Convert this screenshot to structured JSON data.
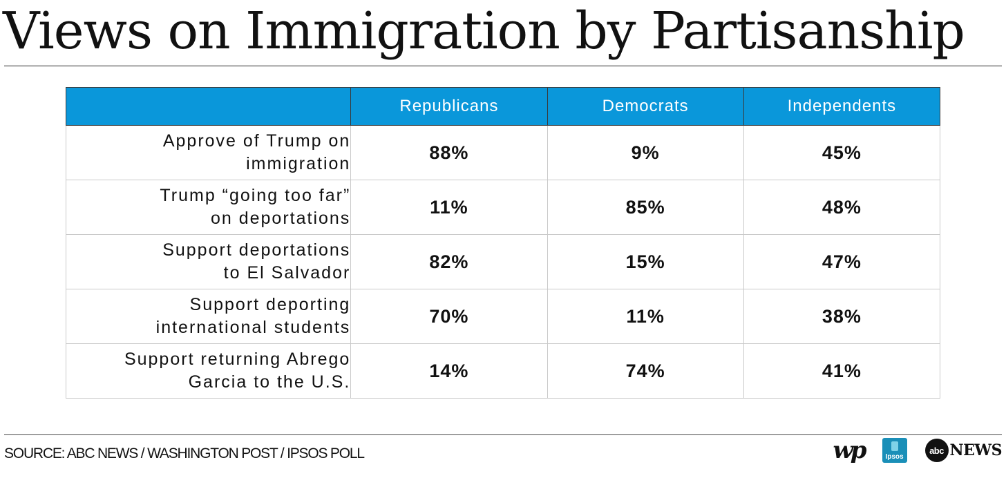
{
  "title": "Views on Immigration by Partisanship",
  "chart_data": {
    "type": "table",
    "columns": [
      "",
      "Republicans",
      "Democrats",
      "Independents"
    ],
    "rows": [
      {
        "label_lines": [
          "Approve of Trump on",
          "immigration"
        ],
        "values": [
          "88%",
          "9%",
          "45%"
        ]
      },
      {
        "label_lines": [
          "Trump “going too far”",
          "on deportations"
        ],
        "values": [
          "11%",
          "85%",
          "48%"
        ]
      },
      {
        "label_lines": [
          "Support deportations",
          "to El Salvador"
        ],
        "values": [
          "82%",
          "15%",
          "47%"
        ]
      },
      {
        "label_lines": [
          "Support deporting",
          "international students"
        ],
        "values": [
          "70%",
          "11%",
          "38%"
        ]
      },
      {
        "label_lines": [
          "Support returning Abrego",
          "Garcia to the U.S."
        ],
        "values": [
          "14%",
          "74%",
          "41%"
        ]
      }
    ],
    "header_color": "#0a97da"
  },
  "footer": {
    "source": "SOURCE: ABC NEWS / WASHINGTON POST / IPSOS POLL",
    "logos": [
      {
        "name": "washington-post-logo",
        "text": "wp"
      },
      {
        "name": "ipsos-logo",
        "text": "Ipsos"
      },
      {
        "name": "abc-news-logo",
        "disc_text": "abc",
        "text": "NEWS"
      }
    ]
  }
}
